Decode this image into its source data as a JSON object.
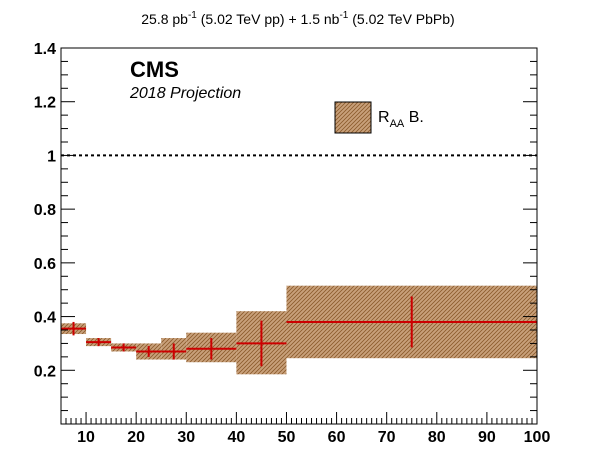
{
  "header": {
    "title_a": "25.8 pb",
    "title_a_sup": "-1",
    "title_b": " (5.02 TeV pp) + 1.5 nb",
    "title_b_sup": "-1",
    "title_c": " (5.02 TeV PbPb)"
  },
  "labels": {
    "experiment": "CMS",
    "projection": "2018 Projection"
  },
  "legend": {
    "main": "R",
    "sub": "AA",
    "suffix": " B."
  },
  "colors": {
    "band_fill": "#c8a07a",
    "band_hatch": "#8b5a2b",
    "marker": "#cc0000",
    "axis": "#000000",
    "reference_line": "#000000"
  },
  "chart_data": {
    "type": "scatter",
    "xlim": [
      5,
      100
    ],
    "ylim": [
      0,
      1.4
    ],
    "x_ticks": [
      "10",
      "20",
      "30",
      "40",
      "50",
      "60",
      "70",
      "80",
      "90",
      "100"
    ],
    "y_ticks": [
      "0.2",
      "0.4",
      "0.6",
      "0.8",
      "1",
      "1.2",
      "1.4"
    ],
    "x_tick_values": [
      10,
      20,
      30,
      40,
      50,
      60,
      70,
      80,
      90,
      100
    ],
    "y_tick_values": [
      0.2,
      0.4,
      0.6,
      0.8,
      1.0,
      1.2,
      1.4
    ],
    "reference_y": 1.0,
    "grid": false,
    "legend_position": "top-right",
    "series": [
      {
        "points": [
          {
            "x": 7.5,
            "xlo": 5,
            "xhi": 10,
            "y": 0.355,
            "stat_err": 0.025,
            "syst_lo": 0.335,
            "syst_hi": 0.375
          },
          {
            "x": 12.5,
            "xlo": 10,
            "xhi": 15,
            "y": 0.305,
            "stat_err": 0.015,
            "syst_lo": 0.29,
            "syst_hi": 0.32
          },
          {
            "x": 17.5,
            "xlo": 15,
            "xhi": 20,
            "y": 0.285,
            "stat_err": 0.015,
            "syst_lo": 0.27,
            "syst_hi": 0.3
          },
          {
            "x": 22.5,
            "xlo": 20,
            "xhi": 25,
            "y": 0.27,
            "stat_err": 0.02,
            "syst_lo": 0.24,
            "syst_hi": 0.3
          },
          {
            "x": 27.5,
            "xlo": 25,
            "xhi": 30,
            "y": 0.27,
            "stat_err": 0.03,
            "syst_lo": 0.24,
            "syst_hi": 0.32
          },
          {
            "x": 35,
            "xlo": 30,
            "xhi": 40,
            "y": 0.28,
            "stat_err": 0.04,
            "syst_lo": 0.23,
            "syst_hi": 0.34
          },
          {
            "x": 45,
            "xlo": 40,
            "xhi": 50,
            "y": 0.3,
            "stat_err": 0.085,
            "syst_lo": 0.185,
            "syst_hi": 0.42
          },
          {
            "x": 75,
            "xlo": 50,
            "xhi": 100,
            "y": 0.38,
            "stat_err": 0.095,
            "syst_lo": 0.245,
            "syst_hi": 0.515
          }
        ]
      }
    ]
  }
}
